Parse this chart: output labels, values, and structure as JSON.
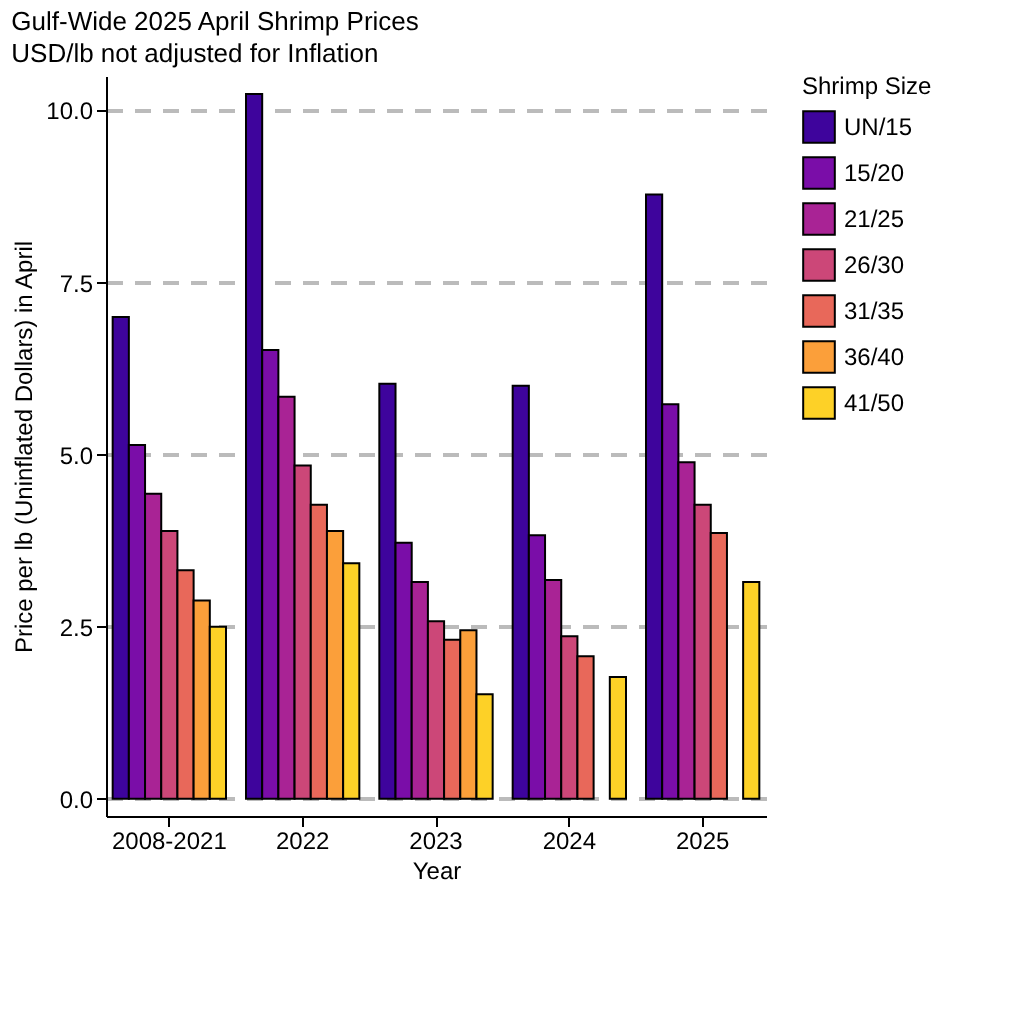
{
  "chart_data": {
    "type": "bar",
    "title": "Gulf-Wide 2025 April Shrimp Prices",
    "subtitle": "USD/lb not adjusted for Inflation",
    "xlabel": "Year",
    "ylabel": "Price per lb (Uninflated Dollars) in April",
    "legend_title": "Shrimp Size",
    "categories": [
      "2008-2021",
      "2022",
      "2023",
      "2024",
      "2025"
    ],
    "series": [
      {
        "name": "UN/15",
        "color": "#3e049c",
        "values": [
          7.0,
          10.24,
          6.03,
          6.0,
          8.78
        ]
      },
      {
        "name": "15/20",
        "color": "#7a0da8",
        "values": [
          5.14,
          6.52,
          3.72,
          3.83,
          5.73
        ]
      },
      {
        "name": "21/25",
        "color": "#a92395",
        "values": [
          4.43,
          5.84,
          3.15,
          3.18,
          4.89
        ]
      },
      {
        "name": "26/30",
        "color": "#cc4778",
        "values": [
          3.89,
          4.84,
          2.58,
          2.36,
          4.27
        ]
      },
      {
        "name": "31/35",
        "color": "#e8685a",
        "values": [
          3.32,
          4.27,
          2.31,
          2.07,
          3.86
        ]
      },
      {
        "name": "36/40",
        "color": "#fb9f3a",
        "values": [
          2.88,
          3.89,
          2.45,
          null,
          null
        ]
      },
      {
        "name": "41/50",
        "color": "#fdd127",
        "values": [
          2.5,
          3.42,
          1.52,
          1.77,
          3.15
        ]
      }
    ],
    "ylim": [
      -0.25,
      10.5
    ],
    "yticks": [
      {
        "value": 0,
        "label": "0.0"
      },
      {
        "value": 2.5,
        "label": "2.5"
      },
      {
        "value": 5,
        "label": "5.0"
      },
      {
        "value": 7.5,
        "label": "7.5"
      },
      {
        "value": 10,
        "label": "10.0"
      }
    ],
    "grid": "y",
    "legend": "right"
  }
}
